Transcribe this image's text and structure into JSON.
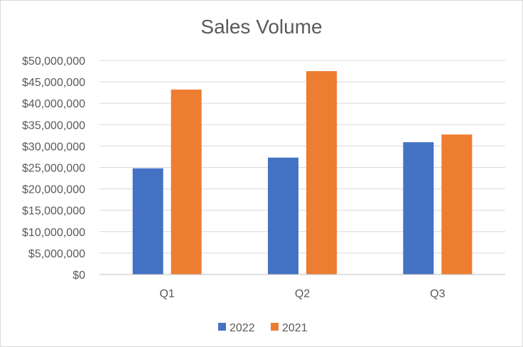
{
  "chart_data": {
    "type": "bar",
    "title": "Sales Volume",
    "xlabel": "",
    "ylabel": "",
    "categories": [
      "Q1",
      "Q2",
      "Q3"
    ],
    "series": [
      {
        "name": "2022",
        "color": "#4472C4",
        "values": [
          24800000,
          27300000,
          30900000
        ]
      },
      {
        "name": "2021",
        "color": "#ED7D31",
        "values": [
          43200000,
          47500000,
          32700000
        ]
      }
    ],
    "ylim": [
      0,
      50000000
    ],
    "yticks": [
      0,
      5000000,
      10000000,
      15000000,
      20000000,
      25000000,
      30000000,
      35000000,
      40000000,
      45000000,
      50000000
    ],
    "ytick_labels": [
      "$0",
      "$5,000,000",
      "$10,000,000",
      "$15,000,000",
      "$20,000,000",
      "$25,000,000",
      "$30,000,000",
      "$35,000,000",
      "$40,000,000",
      "$45,000,000",
      "$50,000,000"
    ],
    "grid": true,
    "legend_position": "bottom"
  }
}
